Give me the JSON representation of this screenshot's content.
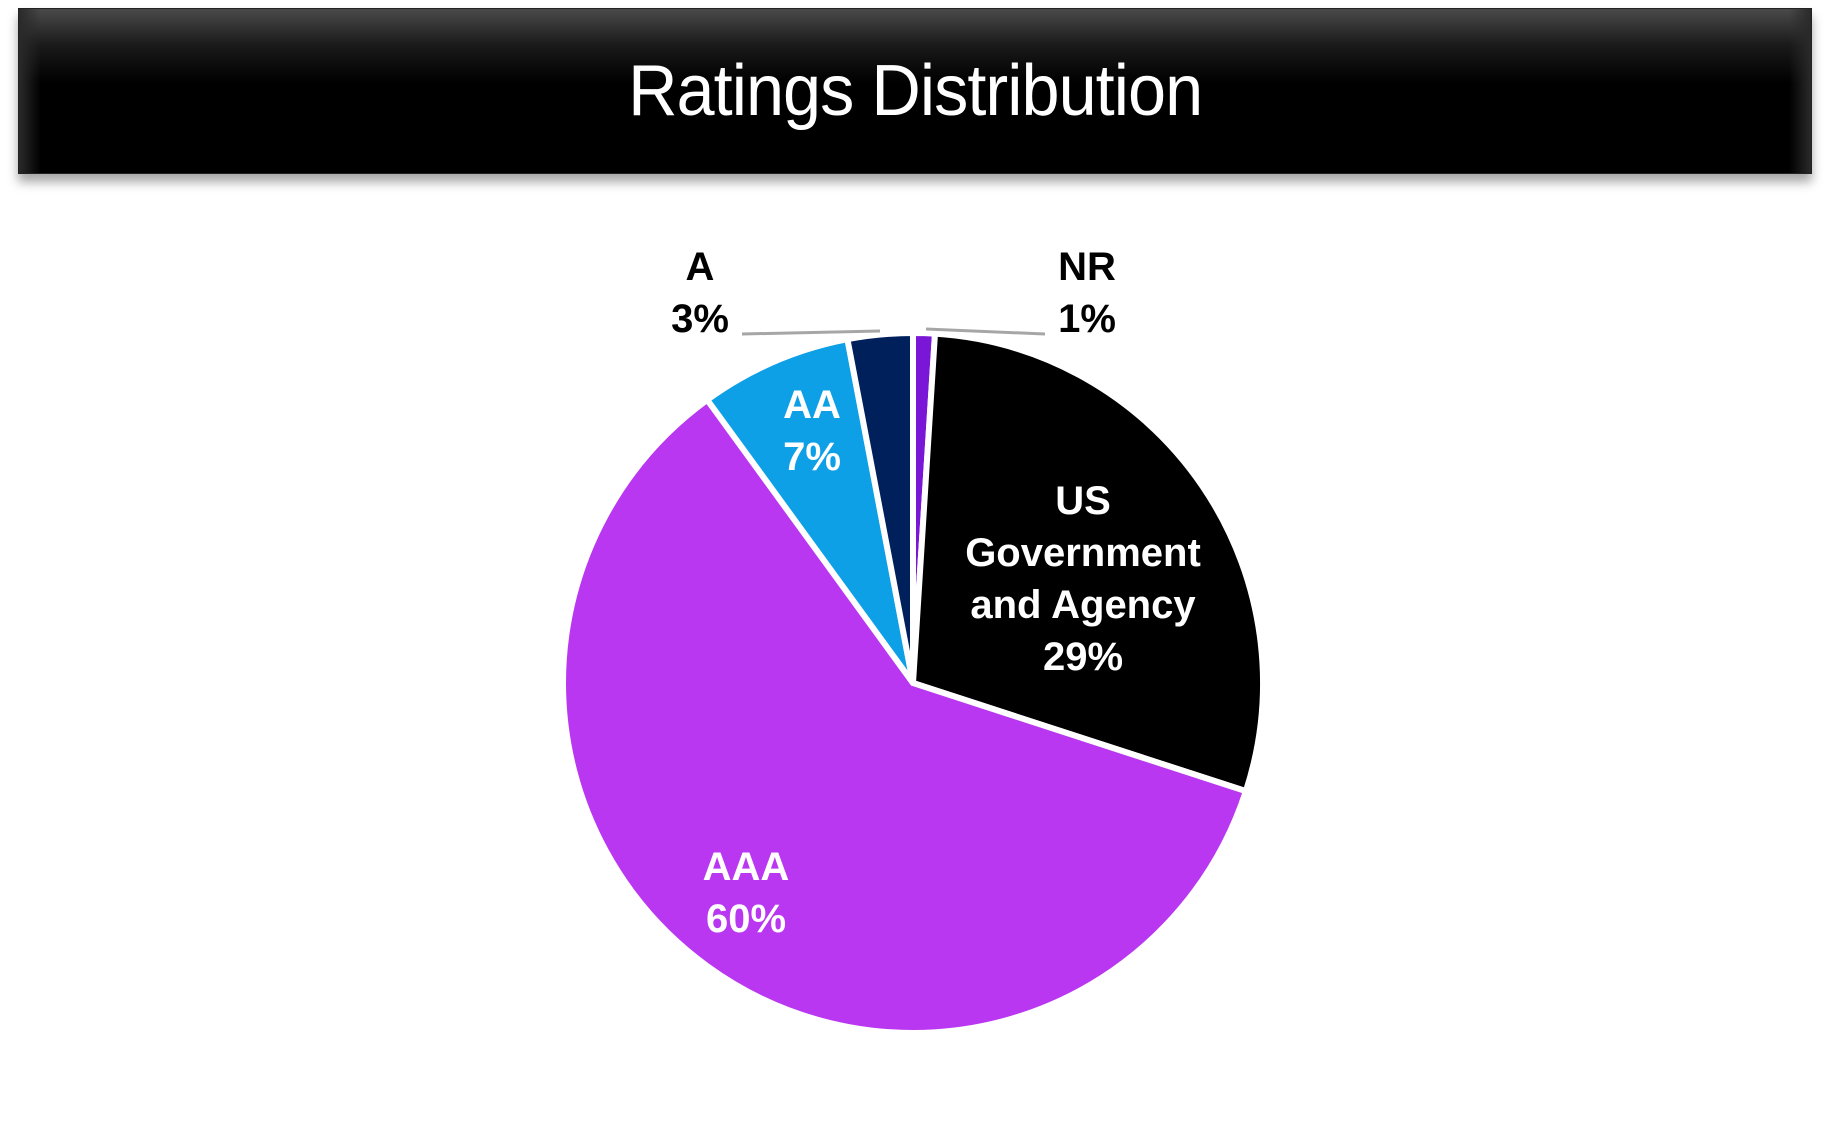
{
  "header": {
    "title": "Ratings Distribution"
  },
  "chart_data": {
    "type": "pie",
    "title": "Ratings Distribution",
    "start_angle_deg": 0,
    "direction": "clockwise",
    "slices": [
      {
        "name": "NR",
        "value": 1,
        "label_line1": "NR",
        "label_line2": "1%",
        "color": "#7a17d6",
        "label_color": "#000000",
        "label_outside": true
      },
      {
        "name": "US Government and Agency",
        "value": 29,
        "label_lines": [
          "US",
          "Government",
          "and Agency",
          "29%"
        ],
        "color": "#000000",
        "label_color": "#ffffff",
        "label_outside": false
      },
      {
        "name": "AAA",
        "value": 60,
        "label_line1": "AAA",
        "label_line2": "60%",
        "color": "#b937f0",
        "label_color": "#ffffff",
        "label_outside": false
      },
      {
        "name": "AA",
        "value": 7,
        "label_line1": "AA",
        "label_line2": "7%",
        "color": "#0ea0e6",
        "label_color": "#ffffff",
        "label_outside": false
      },
      {
        "name": "A",
        "value": 3,
        "label_line1": "A",
        "label_line2": "3%",
        "color": "#00205b",
        "label_color": "#000000",
        "label_outside": true
      }
    ],
    "legend": "none",
    "leader_line_color": "#a6a6a6"
  }
}
